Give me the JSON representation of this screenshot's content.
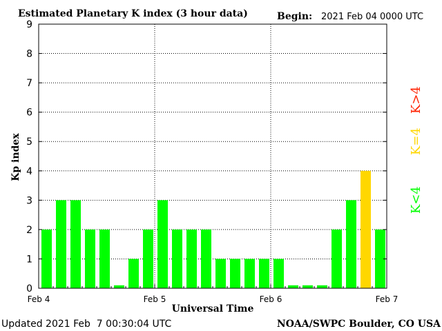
{
  "chart_data": {
    "type": "bar",
    "title": "Estimated Planetary K index (3 hour data)",
    "begin_label": "Begin:",
    "begin_value": "2021 Feb 04 0000 UTC",
    "ylabel": "Kp index",
    "xlabel": "Universal Time",
    "ylim": [
      0,
      9
    ],
    "yticks": [
      0,
      1,
      2,
      3,
      4,
      5,
      6,
      7,
      8,
      9
    ],
    "xticks": [
      "Feb 4",
      "Feb 5",
      "Feb 6",
      "Feb 7"
    ],
    "grid": "dotted",
    "bar_interval_hours": 3,
    "values": [
      2,
      3,
      3,
      2,
      2,
      0.1,
      1,
      2,
      3,
      2,
      2,
      2,
      1,
      1,
      1,
      1,
      1,
      0.1,
      0.1,
      0.1,
      2,
      3,
      4,
      2
    ],
    "legend": [
      {
        "label": "K<4",
        "color": "#00ff00"
      },
      {
        "label": "K=4",
        "color": "#ffd700"
      },
      {
        "label": "K>4",
        "color": "#ff2200"
      }
    ],
    "colors": {
      "low": "#00ff00",
      "equal": "#ffd700",
      "high": "#ff2200"
    }
  },
  "footer": {
    "updated": "Updated 2021 Feb  7 00:30:04 UTC",
    "source": "NOAA/SWPC Boulder, CO USA"
  }
}
